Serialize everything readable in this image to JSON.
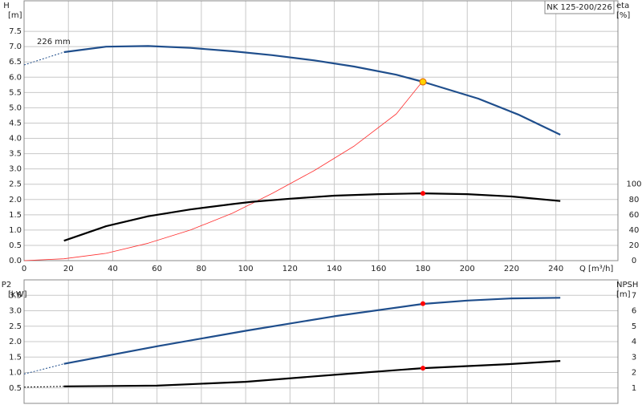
{
  "chart_data": [
    {
      "type": "line",
      "title": "NK 125-200/226",
      "ylabel": [
        "H",
        "[m]"
      ],
      "y2label": [
        "eta",
        "[%]"
      ],
      "xlabel": "Q [m³/h]",
      "annotation": "226 mm",
      "xlim": [
        0,
        268
      ],
      "xticks": [
        0,
        20,
        40,
        60,
        80,
        100,
        120,
        140,
        160,
        180,
        200,
        220,
        240
      ],
      "ylim": [
        0,
        8.5
      ],
      "yticks": [
        {
          "value": 0,
          "label": "0.0"
        },
        0.5,
        {
          "value": 1,
          "label": "1.0"
        },
        1.5,
        {
          "value": 2,
          "label": "2.0"
        },
        2.5,
        {
          "value": 3,
          "label": "3.0"
        },
        3.5,
        {
          "value": 4,
          "label": "4.0"
        },
        4.5,
        {
          "value": 5,
          "label": "5.0"
        },
        5.5,
        {
          "value": 6,
          "label": "6.0"
        },
        6.5,
        {
          "value": 7,
          "label": "7.0"
        },
        7.5
      ],
      "y2lim": [
        0,
        340
      ],
      "y2ticks": [
        0,
        20,
        40,
        60,
        80,
        100
      ],
      "grid": true,
      "series": [
        {
          "color": "#1f4e8c",
          "style": "dashed",
          "x": [
            0,
            18
          ],
          "values": [
            6.4,
            6.82
          ]
        },
        {
          "color": "#1f4e8c",
          "style": "solid",
          "x": [
            18,
            37,
            56,
            75,
            94,
            112,
            131,
            149,
            168,
            180,
            205,
            223,
            242
          ],
          "values": [
            6.82,
            7.0,
            7.02,
            6.96,
            6.85,
            6.72,
            6.55,
            6.35,
            6.08,
            5.85,
            5.3,
            4.78,
            4.12
          ]
        },
        {
          "color": "#ff3030",
          "style": "thin",
          "x": [
            0,
            18,
            37,
            56,
            75,
            94,
            112,
            131,
            149,
            168,
            180
          ],
          "values": [
            0,
            0.06,
            0.24,
            0.57,
            1.0,
            1.55,
            2.2,
            2.95,
            3.75,
            4.8,
            5.88
          ]
        },
        {
          "color": "#000000",
          "style": "solid",
          "axis": "y2",
          "x": [
            18,
            37,
            56,
            75,
            94,
            103,
            120,
            140,
            160,
            180,
            200,
            220,
            242
          ],
          "values": [
            26,
            45,
            58,
            67,
            74,
            77,
            81,
            85,
            87,
            88,
            87,
            84,
            78
          ]
        },
        {
          "color": "#ffd200",
          "marker": "circle",
          "x": [
            180
          ],
          "values": [
            5.85
          ]
        },
        {
          "color": "#ff0000",
          "marker": "dot",
          "axis": "y2",
          "x": [
            180
          ],
          "values": [
            88
          ]
        }
      ]
    },
    {
      "type": "line",
      "ylabel": [
        "P2",
        "[kW]"
      ],
      "y2label": [
        "NPSH",
        "[m]"
      ],
      "xlim": [
        0,
        268
      ],
      "ylim": [
        0,
        4
      ],
      "yticks": [
        0.5,
        {
          "value": 1,
          "label": "1.0"
        },
        1.5,
        {
          "value": 2,
          "label": "2.0"
        },
        2.5,
        {
          "value": 3,
          "label": "3.0"
        },
        3.5
      ],
      "y2lim": [
        0,
        8
      ],
      "y2ticks": [
        1,
        2,
        3,
        4,
        5,
        6,
        7
      ],
      "grid": true,
      "series": [
        {
          "color": "#1f4e8c",
          "style": "dashed",
          "x": [
            0,
            18
          ],
          "values": [
            0.95,
            1.28
          ]
        },
        {
          "color": "#1f4e8c",
          "style": "solid",
          "x": [
            18,
            60,
            100,
            140,
            180,
            200,
            220,
            242
          ],
          "values": [
            1.28,
            1.85,
            2.35,
            2.82,
            3.22,
            3.33,
            3.4,
            3.42
          ]
        },
        {
          "color": "#000000",
          "style": "dashed",
          "axis": "y2",
          "x": [
            0,
            18
          ],
          "values": [
            1.05,
            1.1
          ]
        },
        {
          "color": "#000000",
          "style": "solid",
          "axis": "y2",
          "x": [
            18,
            60,
            100,
            140,
            180,
            220,
            242
          ],
          "values": [
            1.1,
            1.15,
            1.4,
            1.85,
            2.28,
            2.55,
            2.75
          ]
        },
        {
          "color": "#ff0000",
          "marker": "dot",
          "x": [
            180
          ],
          "values": [
            3.23
          ]
        },
        {
          "color": "#ff0000",
          "marker": "dot",
          "axis": "y2",
          "x": [
            180
          ],
          "values": [
            2.28
          ]
        }
      ]
    }
  ]
}
